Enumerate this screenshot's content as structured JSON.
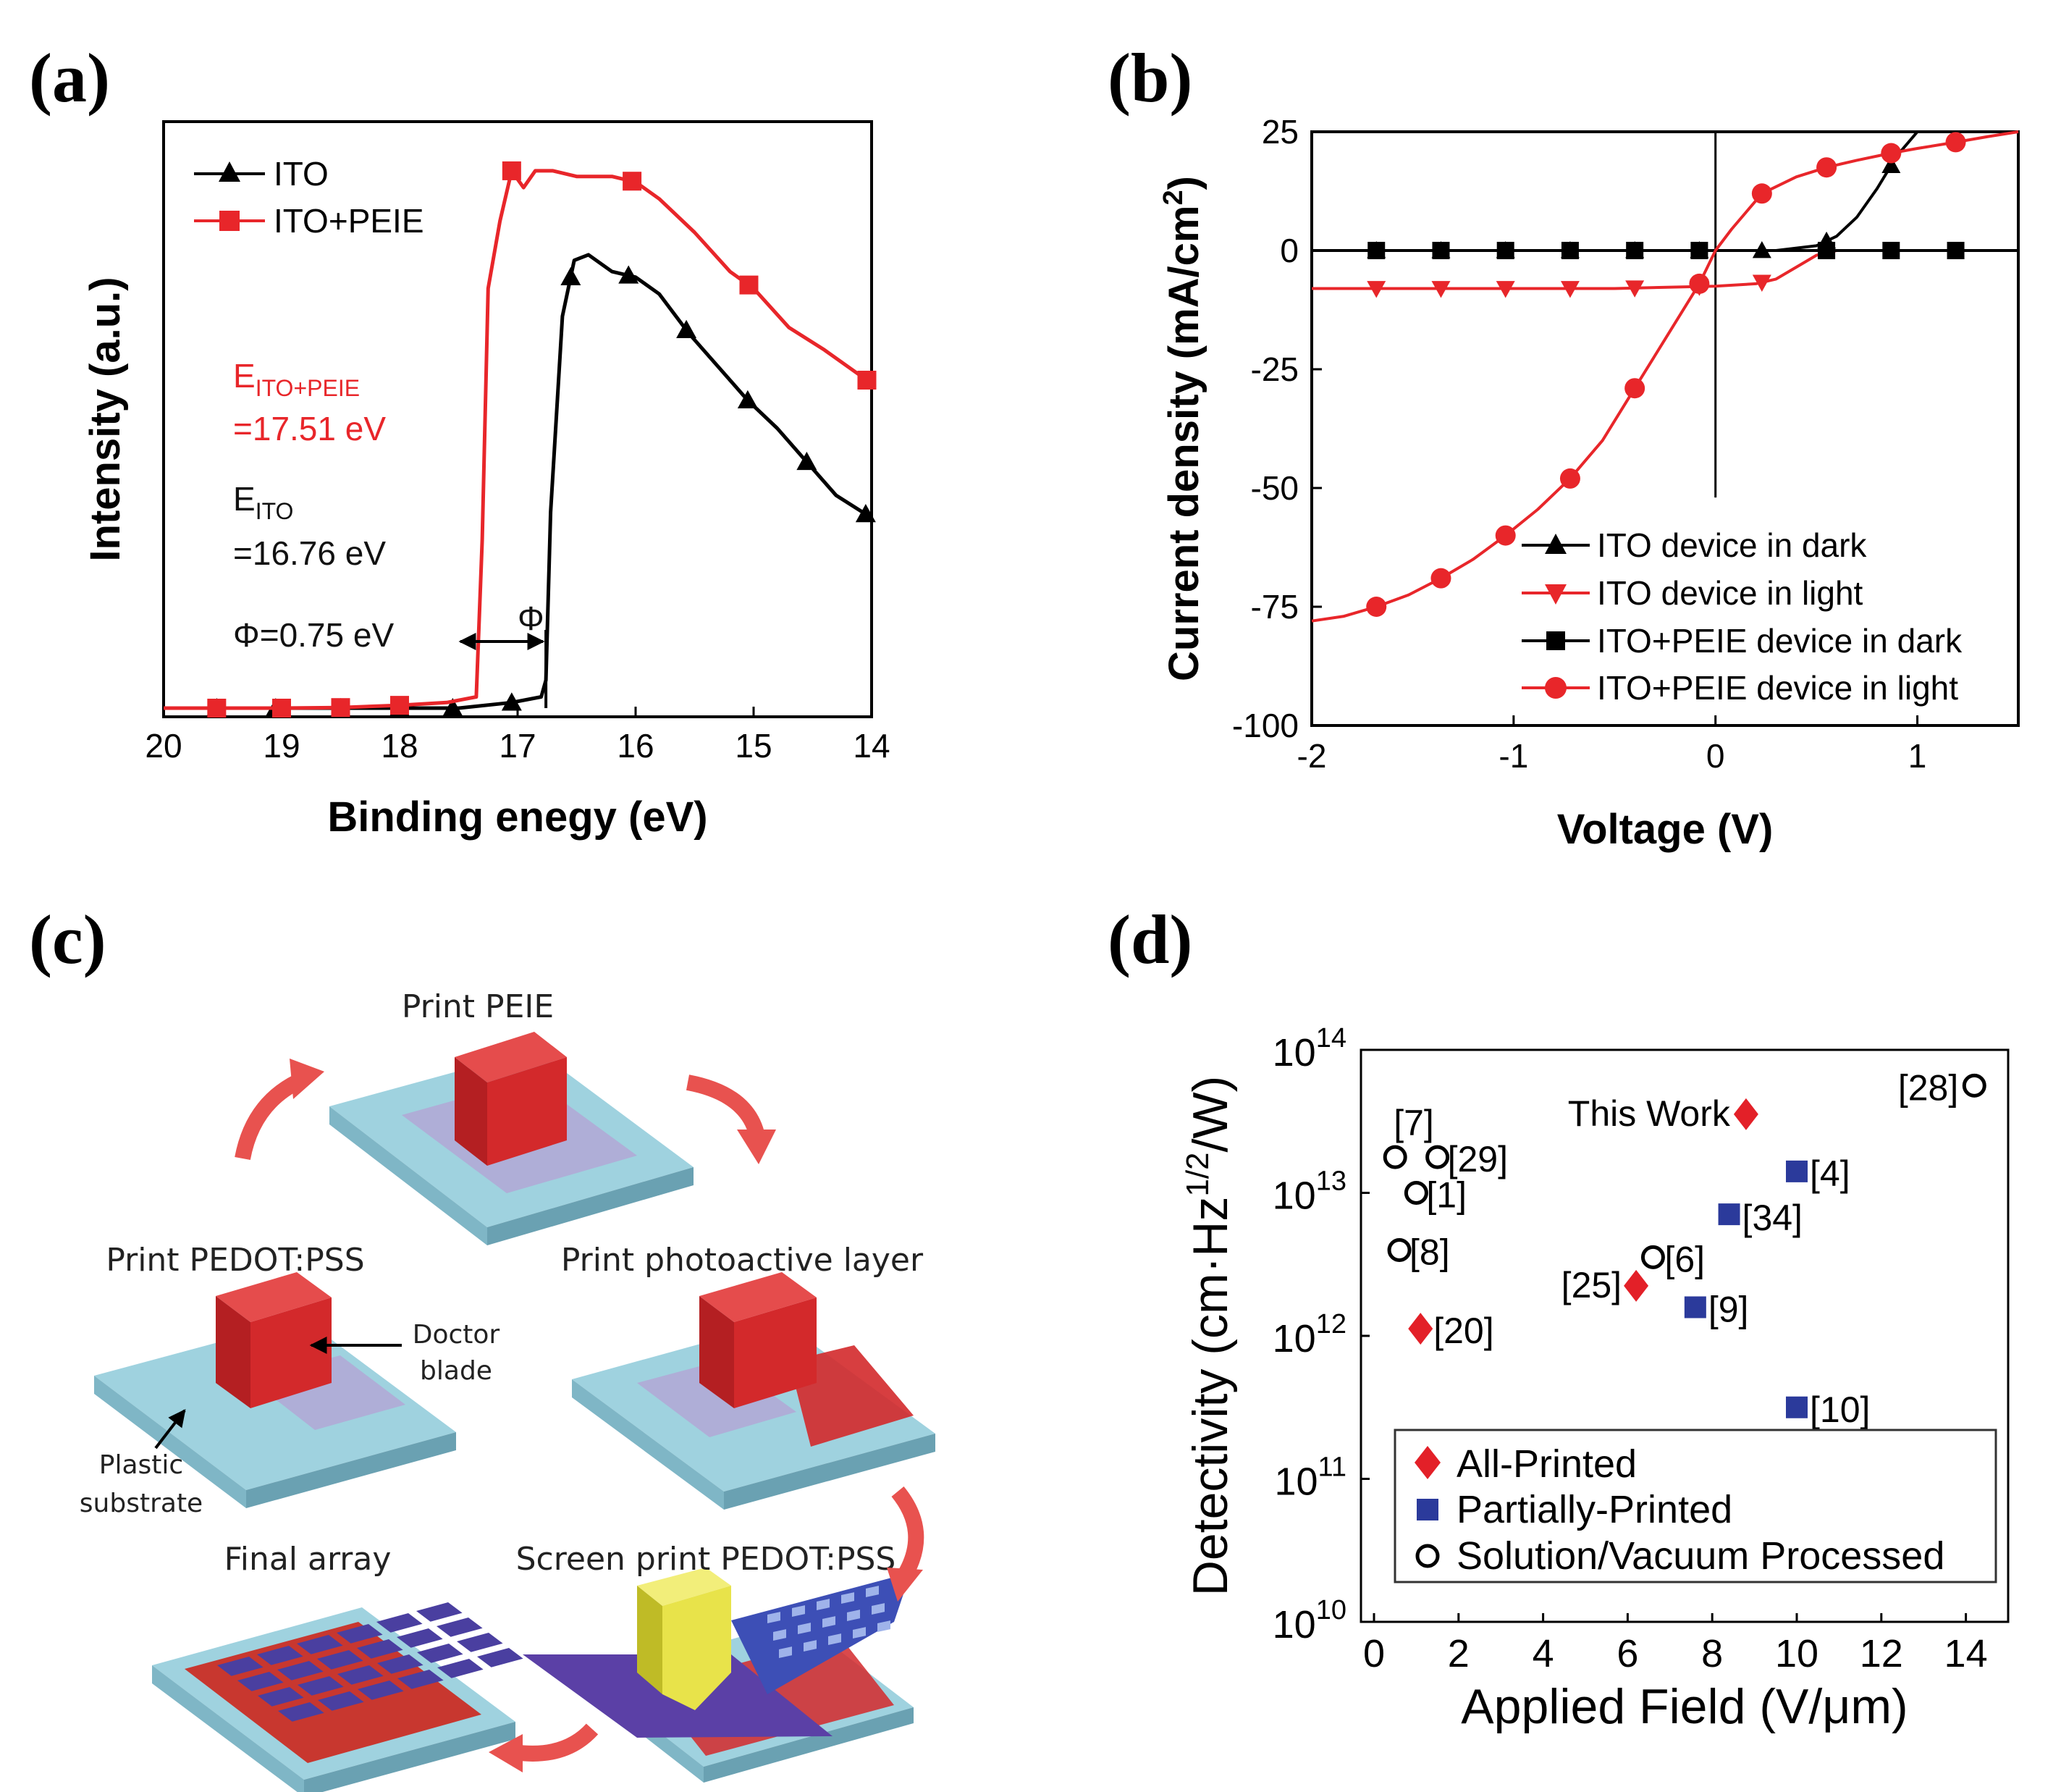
{
  "panel_labels": {
    "a": "(a)",
    "b": "(b)",
    "c": "(c)",
    "d": "(d)"
  },
  "colors": {
    "red": "#e8262a",
    "black": "#000000",
    "blue": "#2b3a9b",
    "red_diamond": "#e32028",
    "substrate": "#9fd2df",
    "blade": "#d3292b",
    "screen": "#e8e34a"
  },
  "chart_data": [
    {
      "id": "a",
      "type": "line",
      "xlabel": "Binding enegy (eV)",
      "ylabel": "Intensity (a.u.)",
      "xlim": [
        20,
        14
      ],
      "x_ticks": [
        "20",
        "19",
        "18",
        "17",
        "16",
        "15",
        "14"
      ],
      "series": [
        {
          "name": "ITO",
          "color": "#000000",
          "marker": "triangle",
          "x": [
            20,
            19.5,
            19,
            18.5,
            18,
            17.5,
            17.05,
            16.8,
            16.76,
            16.72,
            16.62,
            16.52,
            16.4,
            16.2,
            16.0,
            15.8,
            15.55,
            15.3,
            15.05,
            14.8,
            14.55,
            14.3,
            14.0
          ],
          "y": [
            0,
            0,
            0,
            0,
            0,
            0,
            0.01,
            0.02,
            0.05,
            0.35,
            0.7,
            0.8,
            0.81,
            0.78,
            0.77,
            0.74,
            0.67,
            0.61,
            0.55,
            0.5,
            0.44,
            0.38,
            0.34
          ],
          "marker_x": [
            19.55,
            19.05,
            18.5,
            18.0,
            17.55,
            17.05,
            16.55,
            16.06,
            15.57,
            15.05,
            14.55,
            14.05
          ]
        },
        {
          "name": "ITO+PEIE",
          "color": "#e8262a",
          "marker": "square",
          "x": [
            20,
            19.5,
            19,
            18.5,
            18,
            17.6,
            17.35,
            17.3,
            17.25,
            17.15,
            17.05,
            16.95,
            16.85,
            16.7,
            16.5,
            16.2,
            16.0,
            15.8,
            15.5,
            15.2,
            15.0,
            14.7,
            14.4,
            14.0
          ],
          "y": [
            0,
            0,
            0,
            0.001,
            0.005,
            0.01,
            0.02,
            0.3,
            0.75,
            0.87,
            0.96,
            0.93,
            0.96,
            0.96,
            0.95,
            0.95,
            0.94,
            0.91,
            0.85,
            0.78,
            0.75,
            0.68,
            0.64,
            0.58
          ],
          "marker_x": [
            19.55,
            19.0,
            18.5,
            18.0,
            17.05,
            16.03,
            15.04,
            14.04
          ]
        }
      ],
      "legend": [
        "ITO",
        "ITO+PEIE"
      ],
      "annotations": {
        "e_peie_main": "E",
        "e_peie_sub": "ITO+PEIE",
        "e_peie_value": "=17.51 eV",
        "e_ito_main": "E",
        "e_ito_sub": "ITO",
        "e_ito_value": "=16.76 eV",
        "phi_text": "Φ=0.75 eV",
        "phi_symbol": "Φ",
        "e_ito_peie_x": 17.51,
        "e_ito_x": 16.76
      }
    },
    {
      "id": "b",
      "type": "line",
      "xlabel": "Voltage (V)",
      "ylabel": "Current density (mA/cm²)",
      "ylabel_main": "Current density (mA/cm",
      "ylabel_sup": "2",
      "ylabel_tail": ")",
      "xlim": [
        -2,
        1.5
      ],
      "ylim": [
        -100,
        25
      ],
      "x_ticks": [
        "-2",
        "-1",
        "0",
        "1"
      ],
      "y_ticks": [
        "25",
        "0",
        "-25",
        "-50",
        "-75",
        "-100"
      ],
      "series": [
        {
          "name": "ITO device in dark",
          "color": "#000000",
          "marker": "triangle-up",
          "x": [
            -2,
            -1.5,
            -1,
            -0.5,
            0,
            0.3,
            0.5,
            0.6,
            0.7,
            0.8,
            0.9,
            1.0,
            1.1
          ],
          "y": [
            0,
            0,
            0,
            0,
            0,
            0,
            1,
            3,
            7,
            13,
            20,
            27,
            35
          ],
          "marker_x": [
            -1.68,
            -1.36,
            -1.04,
            -0.72,
            -0.4,
            -0.08,
            0.23,
            0.55,
            0.87
          ]
        },
        {
          "name": "ITO device in light",
          "color": "#e8262a",
          "marker": "triangle-down",
          "x": [
            -2,
            -1.5,
            -1,
            -0.5,
            0,
            0.2,
            0.3,
            0.4,
            0.5,
            0.6
          ],
          "y": [
            -8,
            -8,
            -8,
            -8,
            -7.5,
            -7,
            -6,
            -3.5,
            -1,
            0
          ],
          "marker_x": [
            -1.68,
            -1.36,
            -1.04,
            -0.72,
            -0.4,
            -0.08,
            0.23
          ]
        },
        {
          "name": "ITO+PEIE device in dark",
          "color": "#000000",
          "marker": "square",
          "x": [
            -2,
            1.5
          ],
          "y": [
            0,
            0
          ],
          "marker_x": [
            -1.68,
            -1.36,
            -1.04,
            -0.72,
            -0.4,
            -0.08,
            0.55,
            0.87,
            1.19
          ]
        },
        {
          "name": "ITO+PEIE device in light",
          "color": "#e8262a",
          "marker": "circle",
          "x": [
            -2,
            -1.84,
            -1.68,
            -1.52,
            -1.36,
            -1.2,
            -1.04,
            -0.88,
            -0.72,
            -0.56,
            -0.4,
            -0.24,
            -0.08,
            0,
            0.08,
            0.23,
            0.4,
            0.55,
            0.7,
            0.87,
            1.0,
            1.19,
            1.35,
            1.5
          ],
          "y": [
            -78,
            -77,
            -75,
            -72.5,
            -69,
            -65,
            -60,
            -54.5,
            -48,
            -40,
            -29,
            -18,
            -7,
            0,
            4.5,
            12,
            15.5,
            17.5,
            19,
            20.5,
            21.5,
            22.8,
            24,
            25
          ],
          "marker_x": [
            -1.68,
            -1.36,
            -1.04,
            -0.72,
            -0.4,
            -0.08,
            0.23,
            0.55,
            0.87,
            1.19
          ]
        }
      ],
      "legend": [
        "ITO device in dark",
        "ITO device in light",
        "ITO+PEIE device in dark",
        "ITO+PEIE device in light"
      ]
    },
    {
      "id": "d",
      "type": "scatter",
      "xlabel": "Applied Field (V/μm)",
      "ylabel_main": "Detectivity (cm·Hz",
      "ylabel_sup": "1/2",
      "ylabel_tail": "/W)",
      "xlim": [
        0,
        15
      ],
      "ylim_log10": [
        10,
        14
      ],
      "x_ticks": [
        "0",
        "2",
        "4",
        "6",
        "8",
        "10",
        "12",
        "14"
      ],
      "y_ticks": [
        {
          "base": "10",
          "exp": "10"
        },
        {
          "base": "10",
          "exp": "11"
        },
        {
          "base": "10",
          "exp": "12"
        },
        {
          "base": "10",
          "exp": "13"
        },
        {
          "base": "10",
          "exp": "14"
        }
      ],
      "series": [
        {
          "name": "All-Printed",
          "marker": "diamond",
          "color": "#e32028",
          "points": [
            {
              "x": 8.8,
              "log10y": 13.55,
              "label": "This Work"
            },
            {
              "x": 6.2,
              "log10y": 12.35,
              "label": "[25]"
            },
            {
              "x": 1.1,
              "log10y": 12.05,
              "label": "[20]"
            }
          ]
        },
        {
          "name": "Partially-Printed",
          "marker": "square",
          "color": "#2b3a9b",
          "points": [
            {
              "x": 10.0,
              "log10y": 13.15,
              "label": "[4]"
            },
            {
              "x": 8.4,
              "log10y": 12.85,
              "label": "[34]"
            },
            {
              "x": 7.6,
              "log10y": 12.2,
              "label": "[9]"
            },
            {
              "x": 10.0,
              "log10y": 11.5,
              "label": "[10]"
            }
          ]
        },
        {
          "name": "Solution/Vacuum Processed",
          "marker": "circle-open",
          "color": "#000000",
          "points": [
            {
              "x": 14.2,
              "log10y": 13.75,
              "label": "[28]"
            },
            {
              "x": 0.5,
              "log10y": 13.25,
              "label": "[7]"
            },
            {
              "x": 1.5,
              "log10y": 13.25,
              "label": "[29]"
            },
            {
              "x": 1.0,
              "log10y": 13.0,
              "label": "[1]"
            },
            {
              "x": 0.6,
              "log10y": 12.6,
              "label": "[8]"
            },
            {
              "x": 6.6,
              "log10y": 12.55,
              "label": "[6]"
            }
          ]
        }
      ],
      "legend": [
        "All-Printed",
        "Partially-Printed",
        "Solution/Vacuum Processed"
      ]
    }
  ],
  "diagram_c": {
    "steps": [
      "Print PEIE",
      "Print PEDOT:PSS",
      "Print photoactive layer",
      "Screen print PEDOT:PSS",
      "Final array"
    ],
    "labels": {
      "blade_line1": "Doctor",
      "blade_line2": "blade",
      "substrate_line1": "Plastic",
      "substrate_line2": "substrate"
    }
  }
}
